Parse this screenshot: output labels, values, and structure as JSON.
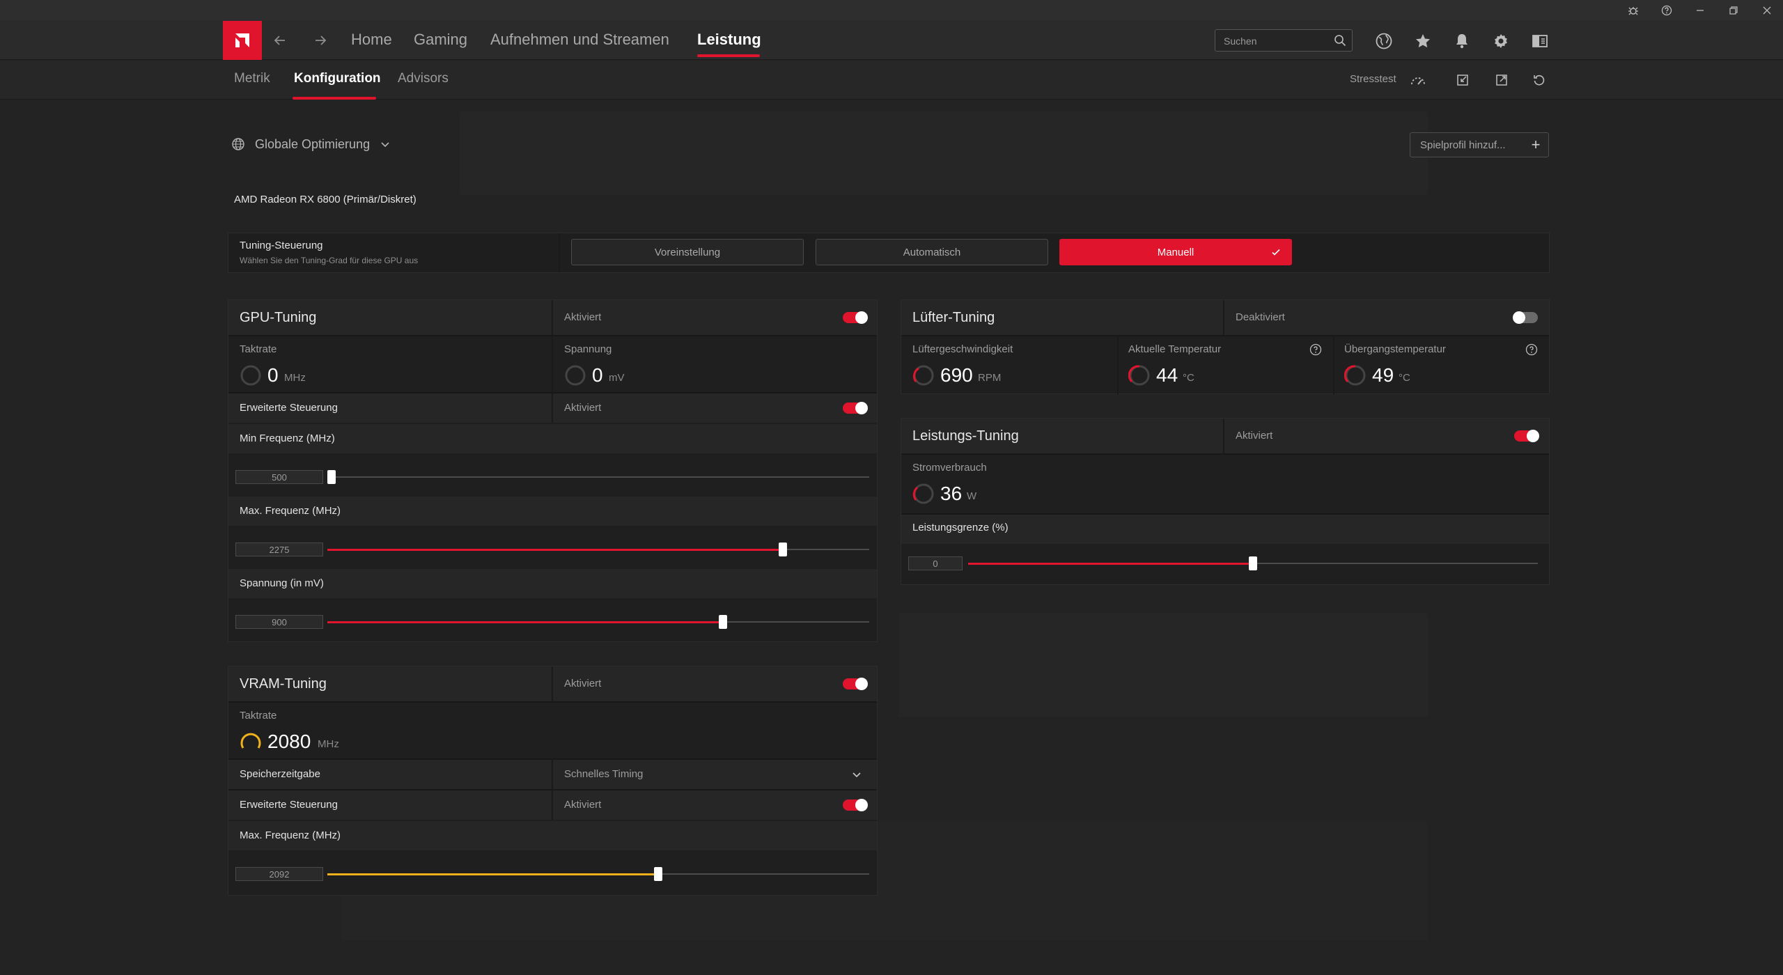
{
  "colors": {
    "accent": "#e0142c",
    "vram_accent": "#f2b21c",
    "background": "#232323",
    "panel": "#1f1f1f"
  },
  "nav": {
    "items": [
      "Home",
      "Gaming",
      "Aufnehmen und Streamen",
      "Leistung"
    ],
    "active": "Leistung",
    "search_placeholder": "Suchen"
  },
  "subnav": {
    "items": [
      "Metrik",
      "Konfiguration",
      "Advisors"
    ],
    "active": "Konfiguration",
    "stresstest_label": "Stresstest"
  },
  "profile": {
    "selected": "Globale Optimierung",
    "add_label": "Spielprofil hinzuf..."
  },
  "gpu_name": "AMD Radeon RX 6800 (Primär/Diskret)",
  "tuning_control": {
    "title": "Tuning-Steuerung",
    "description": "Wählen Sie den Tuning-Grad für diese GPU aus",
    "options": [
      "Voreinstellung",
      "Automatisch",
      "Manuell"
    ],
    "selected": "Manuell"
  },
  "gpu_tuning": {
    "title": "GPU-Tuning",
    "status": "Aktiviert",
    "enabled": true,
    "clock": {
      "label": "Taktrate",
      "value": "0",
      "unit": "MHz"
    },
    "voltage": {
      "label": "Spannung",
      "value": "0",
      "unit": "mV"
    },
    "advanced": {
      "label": "Erweiterte Steuerung",
      "status": "Aktiviert",
      "enabled": true
    },
    "min_freq": {
      "label": "Min Frequenz (MHz)",
      "value": "500",
      "fraction": 0.0
    },
    "max_freq": {
      "label": "Max. Frequenz (MHz)",
      "value": "2275",
      "fraction": 0.84
    },
    "voltage_slider": {
      "label": "Spannung (in mV)",
      "value": "900",
      "fraction": 0.73
    }
  },
  "vram_tuning": {
    "title": "VRAM-Tuning",
    "status": "Aktiviert",
    "enabled": true,
    "clock": {
      "label": "Taktrate",
      "value": "2080",
      "unit": "MHz"
    },
    "memory_timing": {
      "label": "Speicherzeitgabe",
      "value": "Schnelles Timing"
    },
    "advanced": {
      "label": "Erweiterte Steuerung",
      "status": "Aktiviert",
      "enabled": true
    },
    "max_freq": {
      "label": "Max. Frequenz (MHz)",
      "value": "2092",
      "fraction": 0.61
    }
  },
  "fan_tuning": {
    "title": "Lüfter-Tuning",
    "status": "Deaktiviert",
    "enabled": false,
    "fan_speed": {
      "label": "Lüftergeschwindigkeit",
      "value": "690",
      "unit": "RPM"
    },
    "current_temp": {
      "label": "Aktuelle Temperatur",
      "value": "44",
      "unit": "°C"
    },
    "junction_temp": {
      "label": "Übergangstemperatur",
      "value": "49",
      "unit": "°C"
    }
  },
  "power_tuning": {
    "title": "Leistungs-Tuning",
    "status": "Aktiviert",
    "enabled": true,
    "power_draw": {
      "label": "Stromverbrauch",
      "value": "36",
      "unit": "W"
    },
    "power_limit": {
      "label": "Leistungsgrenze (%)",
      "value": "0",
      "fraction": 0.5
    }
  }
}
